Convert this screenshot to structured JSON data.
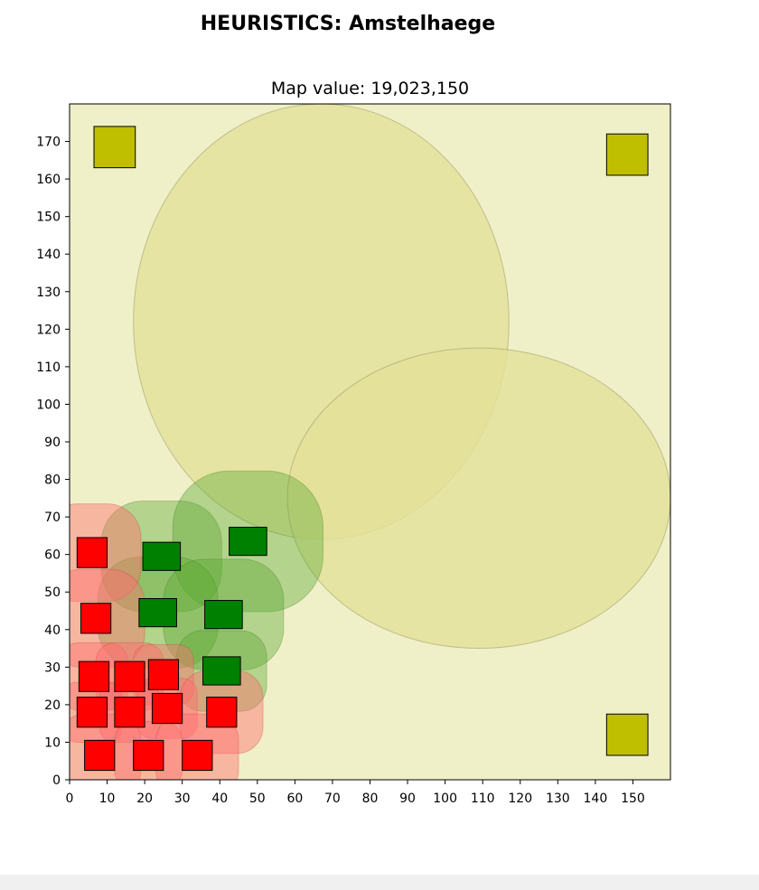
{
  "suptitle": "HEURISTICS: Amstelhaege",
  "chart_data": {
    "type": "scatter",
    "title": "Map value: 19,023,150",
    "xlabel": "",
    "ylabel": "",
    "xlim": [
      0,
      160
    ],
    "ylim": [
      0,
      180
    ],
    "xticks": [
      0,
      10,
      20,
      30,
      40,
      50,
      60,
      70,
      80,
      90,
      100,
      110,
      120,
      130,
      140,
      150
    ],
    "yticks": [
      0,
      10,
      20,
      30,
      40,
      50,
      60,
      70,
      80,
      90,
      100,
      110,
      120,
      130,
      140,
      150,
      160,
      170
    ],
    "grid": false,
    "background_color": "#f0f0c8",
    "water": {
      "color": "#e3e09a",
      "regions": [
        {
          "x0": 17,
          "x1": 117,
          "y_top": 180,
          "y_bottom": 64
        },
        {
          "x0": 58,
          "x1": 160,
          "y_top": 115,
          "y_bottom": 35
        }
      ]
    },
    "fountains": {
      "color": "#bfbf00",
      "items": [
        {
          "x": 12,
          "y": 168.5,
          "w": 11,
          "h": 11
        },
        {
          "x": 148.5,
          "y": 166.5,
          "w": 11,
          "h": 11
        },
        {
          "x": 148.5,
          "y": 12,
          "w": 11,
          "h": 11
        }
      ]
    },
    "houses": [
      {
        "type": "green",
        "x": 24.5,
        "y": 59.5,
        "w": 10,
        "h": 7.5,
        "clear": 11
      },
      {
        "type": "green",
        "x": 47.5,
        "y": 63.5,
        "w": 10,
        "h": 7.5,
        "clear": 15
      },
      {
        "type": "green",
        "x": 23.5,
        "y": 44.5,
        "w": 10,
        "h": 7.5,
        "clear": 11
      },
      {
        "type": "green",
        "x": 41,
        "y": 44,
        "w": 10,
        "h": 7.5,
        "clear": 11
      },
      {
        "type": "green",
        "x": 40.5,
        "y": 29,
        "w": 10,
        "h": 7.5,
        "clear": 7
      },
      {
        "type": "red",
        "x": 6,
        "y": 60.5,
        "w": 8,
        "h": 8,
        "clear": 9
      },
      {
        "type": "red",
        "x": 7,
        "y": 43,
        "w": 8,
        "h": 8,
        "clear": 9
      },
      {
        "type": "red",
        "x": 6.5,
        "y": 27.5,
        "w": 8,
        "h": 8,
        "clear": 5
      },
      {
        "type": "red",
        "x": 16,
        "y": 27.5,
        "w": 8,
        "h": 8,
        "clear": 5
      },
      {
        "type": "red",
        "x": 25,
        "y": 28,
        "w": 8,
        "h": 8,
        "clear": 4
      },
      {
        "type": "red",
        "x": 6,
        "y": 18,
        "w": 8,
        "h": 8,
        "clear": 4
      },
      {
        "type": "red",
        "x": 16,
        "y": 18,
        "w": 8,
        "h": 8,
        "clear": 4
      },
      {
        "type": "red",
        "x": 26,
        "y": 19,
        "w": 8,
        "h": 8,
        "clear": 4
      },
      {
        "type": "red",
        "x": 40.5,
        "y": 18,
        "w": 8,
        "h": 8,
        "clear": 7
      },
      {
        "type": "red",
        "x": 8,
        "y": 6.5,
        "w": 8,
        "h": 8,
        "clear": 7
      },
      {
        "type": "red",
        "x": 21,
        "y": 6.5,
        "w": 8,
        "h": 8,
        "clear": 5
      },
      {
        "type": "red",
        "x": 34,
        "y": 6.5,
        "w": 8,
        "h": 8,
        "clear": 7
      }
    ],
    "colors": {
      "green_house": "#008000",
      "red_house": "#ff0000",
      "green_clearance": "#5aa832",
      "red_clearance": "#ff6e6e"
    }
  }
}
